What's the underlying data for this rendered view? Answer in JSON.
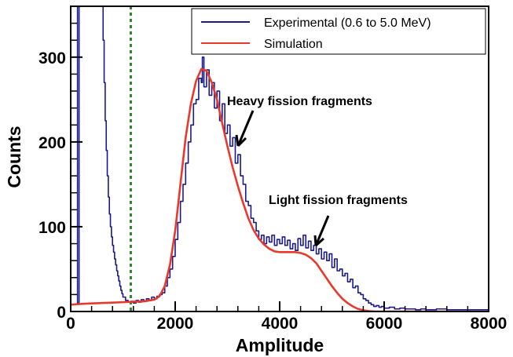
{
  "chart_data": {
    "type": "line",
    "xlabel": "Amplitude",
    "ylabel": "Counts",
    "xlim": [
      0,
      8000
    ],
    "ylim": [
      0,
      360
    ],
    "x_ticks": [
      "0",
      "2000",
      "4000",
      "6000",
      "8000"
    ],
    "y_ticks": [
      "0",
      "100",
      "200",
      "300"
    ],
    "grid": false,
    "legend_position": "top-right",
    "threshold_line_x": 1150,
    "series": [
      {
        "name": "Experimental (0.6 to 5.0 MeV)",
        "color": "#1a1a8c",
        "style": "step",
        "points": [
          [
            0,
            360
          ],
          [
            100,
            360
          ],
          [
            130,
            10
          ],
          [
            160,
            360
          ],
          [
            600,
            360
          ],
          [
            620,
            320
          ],
          [
            640,
            270
          ],
          [
            660,
            225
          ],
          [
            680,
            190
          ],
          [
            700,
            160
          ],
          [
            720,
            135
          ],
          [
            740,
            115
          ],
          [
            760,
            100
          ],
          [
            780,
            88
          ],
          [
            800,
            78
          ],
          [
            820,
            70
          ],
          [
            840,
            62
          ],
          [
            860,
            55
          ],
          [
            880,
            48
          ],
          [
            900,
            42
          ],
          [
            920,
            36
          ],
          [
            940,
            30
          ],
          [
            960,
            25
          ],
          [
            980,
            21
          ],
          [
            1000,
            17
          ],
          [
            1050,
            13
          ],
          [
            1100,
            11
          ],
          [
            1150,
            12
          ],
          [
            1200,
            10
          ],
          [
            1250,
            13
          ],
          [
            1300,
            11
          ],
          [
            1350,
            14
          ],
          [
            1400,
            12
          ],
          [
            1450,
            15
          ],
          [
            1500,
            13
          ],
          [
            1550,
            17
          ],
          [
            1600,
            15
          ],
          [
            1650,
            18
          ],
          [
            1700,
            20
          ],
          [
            1750,
            22
          ],
          [
            1800,
            30
          ],
          [
            1850,
            40
          ],
          [
            1900,
            50
          ],
          [
            1950,
            65
          ],
          [
            2000,
            85
          ],
          [
            2050,
            105
          ],
          [
            2100,
            130
          ],
          [
            2150,
            150
          ],
          [
            2200,
            175
          ],
          [
            2250,
            200
          ],
          [
            2300,
            220
          ],
          [
            2350,
            245
          ],
          [
            2400,
            250
          ],
          [
            2450,
            275
          ],
          [
            2500,
            270
          ],
          [
            2520,
            300
          ],
          [
            2550,
            265
          ],
          [
            2600,
            285
          ],
          [
            2650,
            255
          ],
          [
            2700,
            270
          ],
          [
            2750,
            240
          ],
          [
            2800,
            260
          ],
          [
            2850,
            225
          ],
          [
            2900,
            245
          ],
          [
            2950,
            210
          ],
          [
            3000,
            220
          ],
          [
            3050,
            195
          ],
          [
            3100,
            205
          ],
          [
            3150,
            175
          ],
          [
            3200,
            185
          ],
          [
            3250,
            160
          ],
          [
            3300,
            150
          ],
          [
            3350,
            130
          ],
          [
            3400,
            125
          ],
          [
            3450,
            110
          ],
          [
            3500,
            105
          ],
          [
            3550,
            95
          ],
          [
            3600,
            85
          ],
          [
            3650,
            90
          ],
          [
            3700,
            80
          ],
          [
            3750,
            88
          ],
          [
            3800,
            82
          ],
          [
            3850,
            90
          ],
          [
            3900,
            78
          ],
          [
            3950,
            85
          ],
          [
            4000,
            80
          ],
          [
            4050,
            88
          ],
          [
            4100,
            78
          ],
          [
            4150,
            84
          ],
          [
            4200,
            74
          ],
          [
            4250,
            80
          ],
          [
            4300,
            72
          ],
          [
            4350,
            86
          ],
          [
            4400,
            78
          ],
          [
            4450,
            90
          ],
          [
            4500,
            75
          ],
          [
            4550,
            83
          ],
          [
            4600,
            72
          ],
          [
            4650,
            78
          ],
          [
            4700,
            68
          ],
          [
            4750,
            74
          ],
          [
            4800,
            62
          ],
          [
            4850,
            70
          ],
          [
            4900,
            60
          ],
          [
            4950,
            68
          ],
          [
            5000,
            52
          ],
          [
            5050,
            62
          ],
          [
            5100,
            48
          ],
          [
            5150,
            50
          ],
          [
            5200,
            42
          ],
          [
            5250,
            45
          ],
          [
            5300,
            35
          ],
          [
            5350,
            38
          ],
          [
            5400,
            28
          ],
          [
            5450,
            30
          ],
          [
            5500,
            22
          ],
          [
            5550,
            20
          ],
          [
            5600,
            15
          ],
          [
            5650,
            13
          ],
          [
            5700,
            10
          ],
          [
            5750,
            8
          ],
          [
            5800,
            6
          ],
          [
            5850,
            7
          ],
          [
            5900,
            5
          ],
          [
            5950,
            6
          ],
          [
            6000,
            4
          ],
          [
            6100,
            5
          ],
          [
            6200,
            3
          ],
          [
            6300,
            4
          ],
          [
            6400,
            3
          ],
          [
            6500,
            3
          ],
          [
            6600,
            2
          ],
          [
            6700,
            3
          ],
          [
            6800,
            2
          ],
          [
            6900,
            2
          ],
          [
            7000,
            3
          ],
          [
            7200,
            2
          ],
          [
            7400,
            2
          ],
          [
            7600,
            2
          ],
          [
            7800,
            2
          ],
          [
            8000,
            2
          ]
        ]
      },
      {
        "name": "Simulation",
        "color": "#e8392b",
        "style": "smooth",
        "points": [
          [
            0,
            8
          ],
          [
            200,
            9
          ],
          [
            400,
            9.5
          ],
          [
            600,
            10
          ],
          [
            800,
            10.5
          ],
          [
            1000,
            11
          ],
          [
            1200,
            11.5
          ],
          [
            1400,
            12
          ],
          [
            1600,
            14
          ],
          [
            1700,
            18
          ],
          [
            1800,
            30
          ],
          [
            1900,
            55
          ],
          [
            2000,
            95
          ],
          [
            2100,
            150
          ],
          [
            2200,
            205
          ],
          [
            2300,
            245
          ],
          [
            2400,
            272
          ],
          [
            2500,
            286
          ],
          [
            2600,
            284
          ],
          [
            2700,
            270
          ],
          [
            2800,
            250
          ],
          [
            2900,
            222
          ],
          [
            3000,
            195
          ],
          [
            3100,
            170
          ],
          [
            3200,
            148
          ],
          [
            3300,
            128
          ],
          [
            3400,
            110
          ],
          [
            3500,
            96
          ],
          [
            3600,
            86
          ],
          [
            3700,
            79
          ],
          [
            3800,
            74
          ],
          [
            3900,
            71
          ],
          [
            4000,
            70
          ],
          [
            4100,
            70
          ],
          [
            4200,
            70
          ],
          [
            4300,
            70
          ],
          [
            4400,
            69
          ],
          [
            4500,
            67
          ],
          [
            4600,
            63
          ],
          [
            4700,
            57
          ],
          [
            4800,
            48
          ],
          [
            4900,
            39
          ],
          [
            5000,
            30
          ],
          [
            5100,
            22
          ],
          [
            5200,
            15
          ],
          [
            5300,
            10
          ],
          [
            5400,
            6
          ],
          [
            5500,
            3
          ],
          [
            5600,
            1.5
          ],
          [
            5700,
            0.5
          ],
          [
            5800,
            0
          ],
          [
            8000,
            0
          ]
        ]
      }
    ],
    "annotations": [
      {
        "text": "Heavy fission fragments",
        "arrow_to": [
          3000,
          185
        ]
      },
      {
        "text": "Light fission fragments",
        "arrow_to": [
          4650,
          75
        ]
      }
    ]
  }
}
